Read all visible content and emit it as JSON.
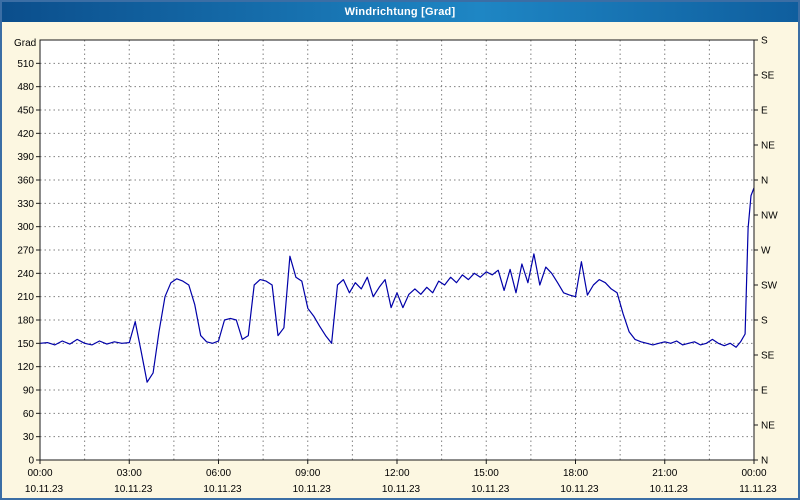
{
  "window": {
    "title": "Windrichtung [Grad]"
  },
  "colors": {
    "background": "#FCF7E1",
    "window_border": "#3B6EA5",
    "titlebar_start": "#0B4E8C",
    "titlebar_end": "#1E86C4",
    "title_text": "#FFFFFF",
    "plot_background": "#FFFFFF",
    "grid": "#808080",
    "axis": "#1A1A1A",
    "line": "#0000A8",
    "label_text": "#000000"
  },
  "chart_data": {
    "type": "line",
    "title": "Windrichtung [Grad]",
    "ylabel": "Grad",
    "y_min": 0,
    "y_max": 540,
    "y_tick_step": 30,
    "y_ticks": [
      0,
      30,
      60,
      90,
      120,
      150,
      180,
      210,
      240,
      270,
      300,
      330,
      360,
      390,
      420,
      450,
      480,
      510
    ],
    "right_axis_ticks": [
      {
        "value": 0,
        "label": "N"
      },
      {
        "value": 45,
        "label": "NE"
      },
      {
        "value": 90,
        "label": "E"
      },
      {
        "value": 135,
        "label": "SE"
      },
      {
        "value": 180,
        "label": "S"
      },
      {
        "value": 225,
        "label": "SW"
      },
      {
        "value": 270,
        "label": "W"
      },
      {
        "value": 315,
        "label": "NW"
      },
      {
        "value": 360,
        "label": "N"
      },
      {
        "value": 405,
        "label": "NE"
      },
      {
        "value": 450,
        "label": "E"
      },
      {
        "value": 495,
        "label": "SE"
      },
      {
        "value": 540,
        "label": "S"
      }
    ],
    "x_min_hours": 0,
    "x_max_hours": 24,
    "x_grid_step_hours": 1.5,
    "x_ticks": [
      {
        "hour": 0,
        "time": "00:00",
        "date": "10.11.23"
      },
      {
        "hour": 3,
        "time": "03:00",
        "date": "10.11.23"
      },
      {
        "hour": 6,
        "time": "06:00",
        "date": "10.11.23"
      },
      {
        "hour": 9,
        "time": "09:00",
        "date": "10.11.23"
      },
      {
        "hour": 12,
        "time": "12:00",
        "date": "10.11.23"
      },
      {
        "hour": 15,
        "time": "15:00",
        "date": "10.11.23"
      },
      {
        "hour": 18,
        "time": "18:00",
        "date": "10.11.23"
      },
      {
        "hour": 21,
        "time": "21:00",
        "date": "10.11.23"
      },
      {
        "hour": 24,
        "time": "00:00",
        "date": "11.11.23"
      }
    ],
    "grid": true,
    "legend": "none",
    "series": [
      {
        "name": "Windrichtung",
        "color": "#0000A8",
        "points": [
          [
            0,
            150
          ],
          [
            0.25,
            151
          ],
          [
            0.5,
            148
          ],
          [
            0.75,
            153
          ],
          [
            1,
            149
          ],
          [
            1.25,
            155
          ],
          [
            1.5,
            150
          ],
          [
            1.75,
            148
          ],
          [
            2,
            153
          ],
          [
            2.25,
            149
          ],
          [
            2.5,
            152
          ],
          [
            2.75,
            150
          ],
          [
            3,
            151
          ],
          [
            3.2,
            178
          ],
          [
            3.4,
            140
          ],
          [
            3.6,
            100
          ],
          [
            3.8,
            112
          ],
          [
            4,
            165
          ],
          [
            4.2,
            210
          ],
          [
            4.4,
            228
          ],
          [
            4.6,
            233
          ],
          [
            4.8,
            230
          ],
          [
            5,
            225
          ],
          [
            5.2,
            200
          ],
          [
            5.4,
            160
          ],
          [
            5.6,
            152
          ],
          [
            5.8,
            150
          ],
          [
            6,
            153
          ],
          [
            6.2,
            180
          ],
          [
            6.4,
            182
          ],
          [
            6.6,
            180
          ],
          [
            6.8,
            155
          ],
          [
            7,
            160
          ],
          [
            7.2,
            225
          ],
          [
            7.4,
            232
          ],
          [
            7.6,
            230
          ],
          [
            7.8,
            225
          ],
          [
            8,
            160
          ],
          [
            8.2,
            170
          ],
          [
            8.4,
            262
          ],
          [
            8.6,
            235
          ],
          [
            8.8,
            230
          ],
          [
            9,
            195
          ],
          [
            9.2,
            185
          ],
          [
            9.4,
            172
          ],
          [
            9.6,
            160
          ],
          [
            9.8,
            150
          ],
          [
            10,
            225
          ],
          [
            10.2,
            232
          ],
          [
            10.4,
            215
          ],
          [
            10.6,
            228
          ],
          [
            10.8,
            220
          ],
          [
            11,
            235
          ],
          [
            11.2,
            210
          ],
          [
            11.4,
            222
          ],
          [
            11.6,
            232
          ],
          [
            11.8,
            196
          ],
          [
            12,
            215
          ],
          [
            12.2,
            196
          ],
          [
            12.4,
            213
          ],
          [
            12.6,
            220
          ],
          [
            12.8,
            213
          ],
          [
            13,
            222
          ],
          [
            13.2,
            215
          ],
          [
            13.4,
            230
          ],
          [
            13.6,
            225
          ],
          [
            13.8,
            235
          ],
          [
            14,
            228
          ],
          [
            14.2,
            238
          ],
          [
            14.4,
            232
          ],
          [
            14.6,
            240
          ],
          [
            14.8,
            235
          ],
          [
            15,
            242
          ],
          [
            15.2,
            238
          ],
          [
            15.4,
            244
          ],
          [
            15.6,
            218
          ],
          [
            15.8,
            245
          ],
          [
            16,
            215
          ],
          [
            16.2,
            252
          ],
          [
            16.4,
            228
          ],
          [
            16.6,
            265
          ],
          [
            16.8,
            225
          ],
          [
            17,
            248
          ],
          [
            17.2,
            240
          ],
          [
            17.4,
            228
          ],
          [
            17.6,
            215
          ],
          [
            17.8,
            212
          ],
          [
            18,
            210
          ],
          [
            18.2,
            255
          ],
          [
            18.4,
            212
          ],
          [
            18.6,
            225
          ],
          [
            18.8,
            232
          ],
          [
            19,
            228
          ],
          [
            19.2,
            220
          ],
          [
            19.4,
            215
          ],
          [
            19.6,
            188
          ],
          [
            19.8,
            165
          ],
          [
            20,
            155
          ],
          [
            20.2,
            152
          ],
          [
            20.4,
            150
          ],
          [
            20.6,
            148
          ],
          [
            20.8,
            150
          ],
          [
            21,
            152
          ],
          [
            21.2,
            150
          ],
          [
            21.4,
            153
          ],
          [
            21.6,
            148
          ],
          [
            21.8,
            150
          ],
          [
            22,
            152
          ],
          [
            22.2,
            148
          ],
          [
            22.4,
            150
          ],
          [
            22.6,
            155
          ],
          [
            22.8,
            150
          ],
          [
            23,
            147
          ],
          [
            23.2,
            150
          ],
          [
            23.4,
            145
          ],
          [
            23.55,
            152
          ],
          [
            23.7,
            162
          ],
          [
            23.8,
            298
          ],
          [
            23.9,
            340
          ],
          [
            24,
            350
          ]
        ]
      }
    ]
  }
}
